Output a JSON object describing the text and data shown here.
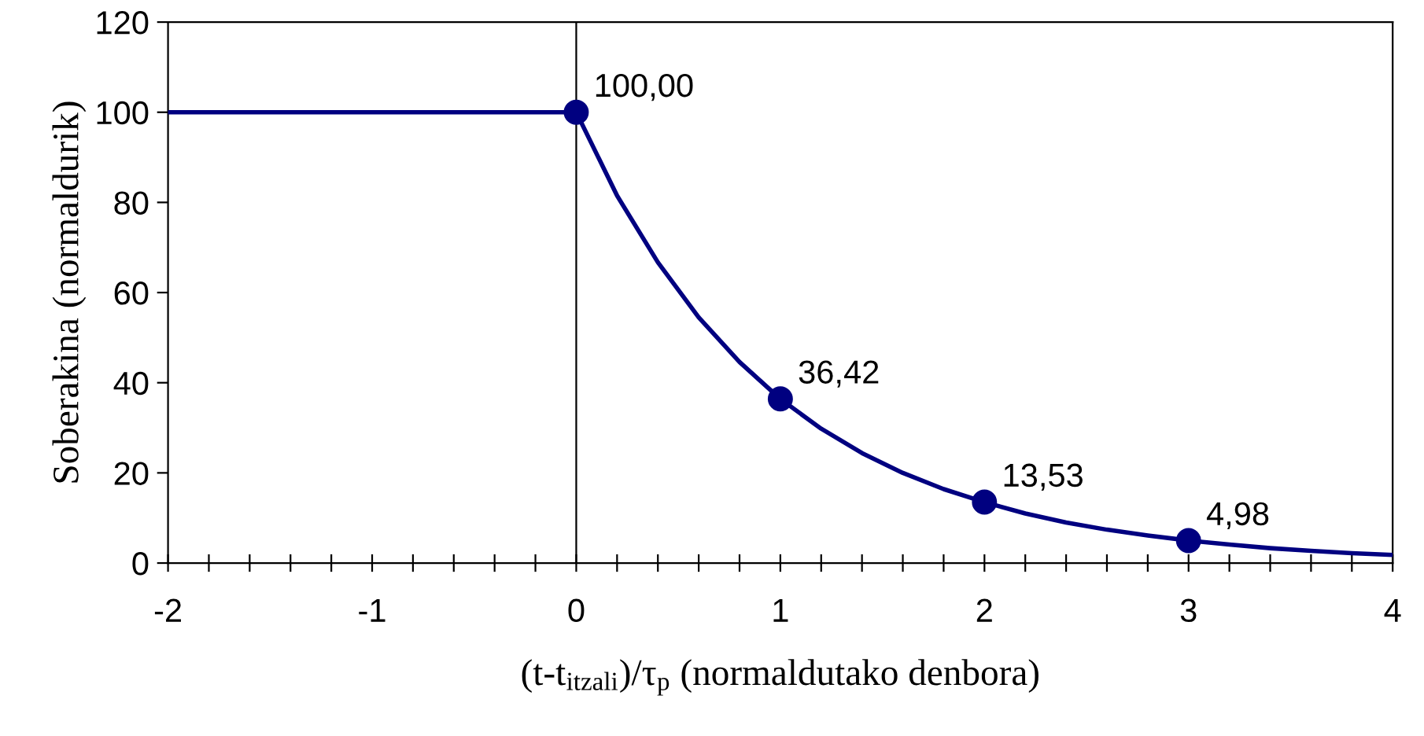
{
  "chart_data": {
    "type": "line",
    "xlabel": "(t-t$_{itzali}$)/τ$_{p}$ (normaldutako denbora)",
    "ylabel": "Soberakina (normaldurik)",
    "xlim": [
      -2,
      4
    ],
    "ylim": [
      0,
      120
    ],
    "xticks": [
      -2,
      {
        "value": -1.8,
        "label": null
      },
      {
        "value": -1.6,
        "label": null
      },
      {
        "value": -1.4,
        "label": null
      },
      {
        "value": -1.2,
        "label": null
      },
      -1,
      {
        "value": -0.8,
        "label": null
      },
      {
        "value": -0.6,
        "label": null
      },
      {
        "value": -0.4,
        "label": null
      },
      {
        "value": -0.2,
        "label": null
      },
      0,
      {
        "value": 0.2,
        "label": null
      },
      {
        "value": 0.4,
        "label": null
      },
      {
        "value": 0.6,
        "label": null
      },
      {
        "value": 0.8,
        "label": null
      },
      1,
      {
        "value": 1.2,
        "label": null
      },
      {
        "value": 1.4,
        "label": null
      },
      {
        "value": 1.6,
        "label": null
      },
      {
        "value": 1.8,
        "label": null
      },
      2,
      {
        "value": 2.2,
        "label": null
      },
      {
        "value": 2.4,
        "label": null
      },
      {
        "value": 2.6,
        "label": null
      },
      {
        "value": 2.8,
        "label": null
      },
      3,
      {
        "value": 3.2,
        "label": null
      },
      {
        "value": 3.4,
        "label": null
      },
      {
        "value": 3.6,
        "label": null
      },
      {
        "value": 3.8,
        "label": null
      },
      4
    ],
    "yticks": [
      0,
      20,
      40,
      60,
      80,
      100,
      120
    ],
    "grid": false,
    "ref_lines": [
      {
        "axis": "x",
        "value": 0,
        "color": "#000000"
      }
    ],
    "series": [
      {
        "color": "#000080",
        "marker": "none",
        "x": [
          -2,
          0,
          0.2,
          0.4,
          0.6,
          0.8,
          1,
          1.2,
          1.4,
          1.6,
          1.8,
          2,
          2.2,
          2.4,
          2.6,
          2.8,
          3,
          3.2,
          3.4,
          3.6,
          3.8,
          4
        ],
        "values": [
          100,
          100,
          81.5,
          66.7,
          54.5,
          44.6,
          36.4,
          29.8,
          24.4,
          20,
          16.4,
          13.5,
          11,
          9,
          7.4,
          6.1,
          5,
          4.1,
          3.3,
          2.7,
          2.2,
          1.8
        ]
      },
      {
        "type": "scatter",
        "color": "#000080",
        "marker": "circle",
        "x": [
          0,
          1,
          2,
          3
        ],
        "values": [
          100,
          36.42,
          13.53,
          4.98
        ],
        "value_labels": [
          "100,00",
          "36,42",
          "13,53",
          "4,98"
        ]
      }
    ]
  }
}
